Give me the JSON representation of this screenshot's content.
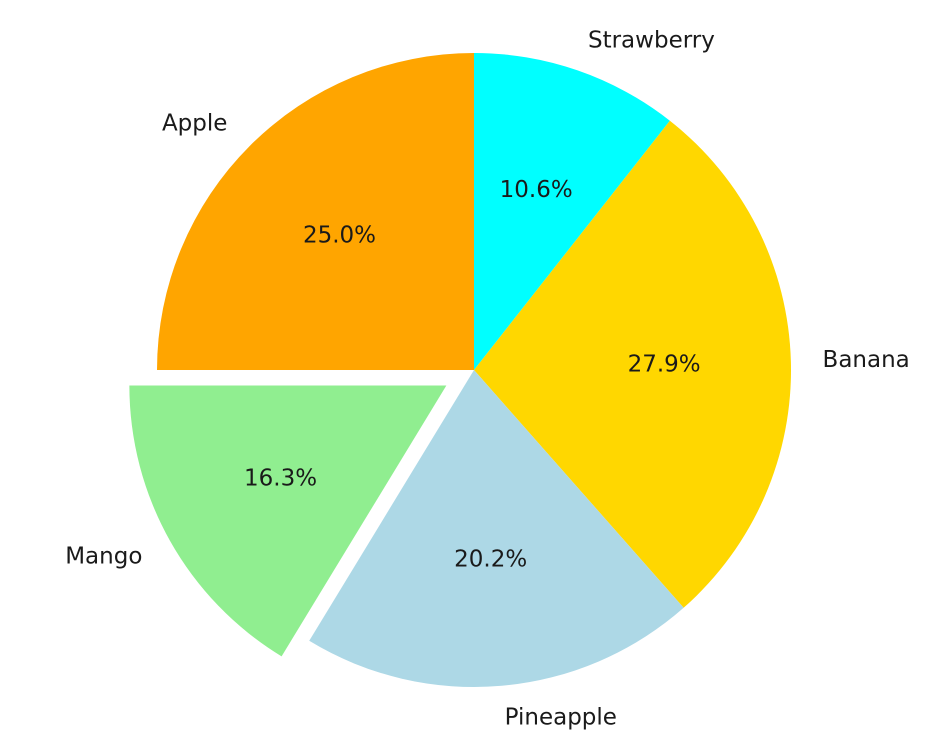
{
  "chart_data": {
    "type": "pie",
    "title": "",
    "start_angle_deg": 90,
    "direction": "clockwise",
    "slices": [
      {
        "label": "Strawberry",
        "value": 10.6,
        "pct_text": "10.6%",
        "color": "#00FFFF",
        "explode": false
      },
      {
        "label": "Banana",
        "value": 27.9,
        "pct_text": "27.9%",
        "color": "#FFD700",
        "explode": false
      },
      {
        "label": "Pineapple",
        "value": 20.2,
        "pct_text": "20.2%",
        "color": "#ADD8E6",
        "explode": false
      },
      {
        "label": "Mango",
        "value": 16.3,
        "pct_text": "16.3%",
        "color": "#90EE90",
        "explode": true
      },
      {
        "label": "Apple",
        "value": 25.0,
        "pct_text": "25.0%",
        "color": "#FFA500",
        "explode": false
      }
    ]
  }
}
